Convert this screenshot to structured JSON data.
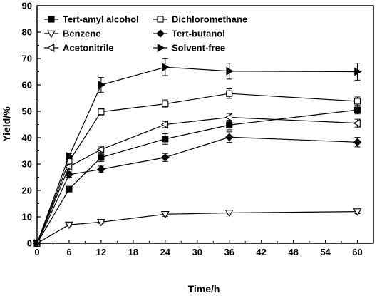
{
  "chart_data": {
    "type": "line",
    "xlabel": "Time/h",
    "ylabel": "Yield/%",
    "xlim": [
      0,
      63
    ],
    "ylim": [
      0,
      90
    ],
    "x_ticks": [
      0,
      6,
      12,
      18,
      24,
      30,
      36,
      42,
      48,
      54,
      60
    ],
    "y_ticks": [
      0,
      10,
      20,
      30,
      40,
      50,
      60,
      70,
      80,
      90
    ],
    "grid": false,
    "legend_position": "top-left",
    "colors": {
      "line": "#000000",
      "axis": "#000000"
    },
    "series": [
      {
        "name": "Tert-amyl alcohol",
        "marker": "square-filled",
        "x": [
          0,
          6,
          12,
          24,
          36,
          60
        ],
        "y": [
          0,
          20.5,
          32.5,
          39.5,
          44.8,
          50.5
        ],
        "err": [
          0,
          0.8,
          1.5,
          2.0,
          1.8,
          1.5
        ]
      },
      {
        "name": "Dichloromethane",
        "marker": "square-open",
        "x": [
          0,
          6,
          12,
          24,
          36,
          60
        ],
        "y": [
          0,
          31,
          49.8,
          52.8,
          56.7,
          53.8
        ],
        "err": [
          0,
          1.0,
          1.2,
          1.5,
          1.8,
          1.6
        ]
      },
      {
        "name": "Benzene",
        "marker": "triangle-down-open",
        "x": [
          0,
          6,
          12,
          24,
          36,
          60
        ],
        "y": [
          0,
          7,
          8,
          11,
          11.5,
          12
        ],
        "err": [
          0,
          0.5,
          0.5,
          0.8,
          0.8,
          0.8
        ]
      },
      {
        "name": "Tert-butanol",
        "marker": "diamond-filled",
        "x": [
          0,
          6,
          12,
          24,
          36,
          60
        ],
        "y": [
          0,
          26,
          28,
          32.5,
          40.2,
          38.3
        ],
        "err": [
          0,
          1.0,
          1.2,
          1.5,
          2.0,
          1.8
        ]
      },
      {
        "name": "Acetonitrile",
        "marker": "triangle-left-open",
        "x": [
          0,
          6,
          12,
          24,
          36,
          60
        ],
        "y": [
          0,
          29,
          35.5,
          45,
          47.7,
          45.5
        ],
        "err": [
          0,
          1.0,
          1.0,
          1.2,
          1.5,
          1.5
        ]
      },
      {
        "name": "Solvent-free",
        "marker": "triangle-right-filled",
        "x": [
          0,
          6,
          12,
          24,
          36,
          60
        ],
        "y": [
          0,
          33,
          60,
          66.7,
          65.2,
          65
        ],
        "err": [
          0,
          1.0,
          2.8,
          3.2,
          3.0,
          3.2
        ]
      }
    ]
  }
}
